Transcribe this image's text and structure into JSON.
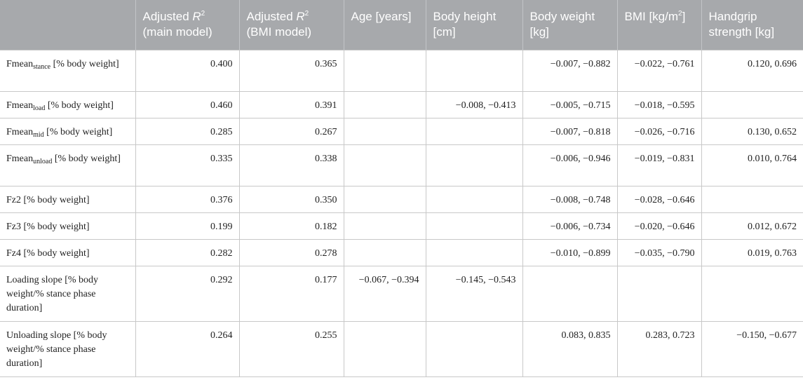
{
  "table": {
    "headers": [
      {
        "pre": "",
        "ital": "",
        "sup": "",
        "post": ""
      },
      {
        "pre": "Adjusted ",
        "ital": "R",
        "sup": "2",
        "post": " (main model)"
      },
      {
        "pre": "Adjusted ",
        "ital": "R",
        "sup": "2",
        "post": " (BMI model)"
      },
      {
        "pre": "Age [years]",
        "ital": "",
        "sup": "",
        "post": ""
      },
      {
        "pre": "Body height [cm]",
        "ital": "",
        "sup": "",
        "post": ""
      },
      {
        "pre": "Body weight [kg]",
        "ital": "",
        "sup": "",
        "post": ""
      },
      {
        "pre": "BMI [kg/m",
        "ital": "",
        "sup": "2",
        "post": "]"
      },
      {
        "pre": "Handgrip strength [kg]",
        "ital": "",
        "sup": "",
        "post": ""
      }
    ],
    "rows": [
      {
        "label": {
          "main": "Fmean",
          "sub": "stance",
          "rest": " [% body weight]"
        },
        "values": [
          "0.400",
          "0.365",
          "",
          "",
          "−0.007, −0.882",
          "−0.022, −0.761",
          "0.120, 0.696"
        ]
      },
      {
        "label": {
          "main": "Fmean",
          "sub": "load",
          "rest": " [% body weight]"
        },
        "values": [
          "0.460",
          "0.391",
          "",
          "−0.008, −0.413",
          "−0.005, −0.715",
          "−0.018, −0.595",
          ""
        ]
      },
      {
        "label": {
          "main": "Fmean",
          "sub": "mid",
          "rest": " [% body weight]"
        },
        "values": [
          "0.285",
          "0.267",
          "",
          "",
          "−0.007, −0.818",
          "−0.026, −0.716",
          "0.130, 0.652"
        ]
      },
      {
        "label": {
          "main": "Fmean",
          "sub": "unload",
          "rest": " [% body weight]"
        },
        "values": [
          "0.335",
          "0.338",
          "",
          "",
          "−0.006, −0.946",
          "−0.019, −0.831",
          "0.010, 0.764"
        ]
      },
      {
        "label": {
          "main": "Fz2 [% body weight]",
          "sub": "",
          "rest": ""
        },
        "values": [
          "0.376",
          "0.350",
          "",
          "",
          "−0.008, −0.748",
          "−0.028, −0.646",
          ""
        ]
      },
      {
        "label": {
          "main": "Fz3 [% body weight]",
          "sub": "",
          "rest": ""
        },
        "values": [
          "0.199",
          "0.182",
          "",
          "",
          "−0.006, −0.734",
          "−0.020, −0.646",
          "0.012, 0.672"
        ]
      },
      {
        "label": {
          "main": "Fz4 [% body weight]",
          "sub": "",
          "rest": ""
        },
        "values": [
          "0.282",
          "0.278",
          "",
          "",
          "−0.010, −0.899",
          "−0.035, −0.790",
          "0.019, 0.763"
        ]
      },
      {
        "label": {
          "main": "Loading slope [% body weight/% stance phase duration]",
          "sub": "",
          "rest": ""
        },
        "values": [
          "0.292",
          "0.177",
          "−0.067, −0.394",
          "−0.145, −0.543",
          "",
          "",
          ""
        ]
      },
      {
        "label": {
          "main": "Unloading slope [% body weight/% stance phase duration]",
          "sub": "",
          "rest": ""
        },
        "values": [
          "0.264",
          "0.255",
          "",
          "",
          "0.083, 0.835",
          "0.283, 0.723",
          "−0.150, −0.677"
        ]
      }
    ]
  }
}
